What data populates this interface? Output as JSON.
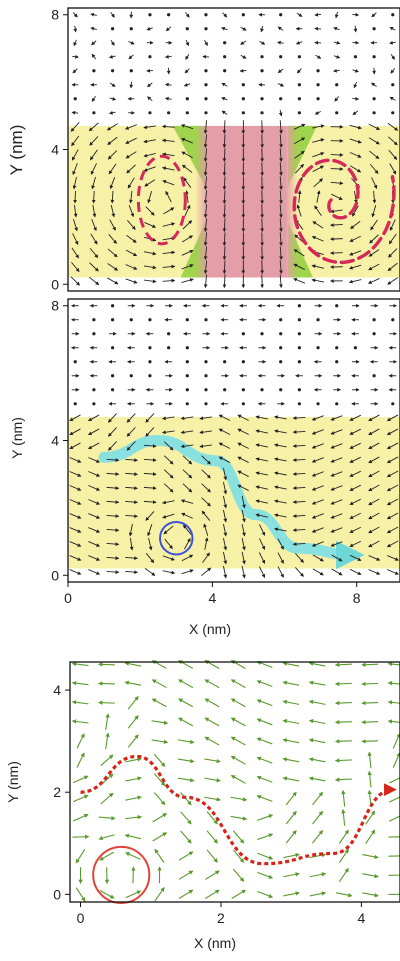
{
  "chart_data": [
    {
      "type": "quiver",
      "panel": "top",
      "xlabel": "",
      "ylabel": "Y (nm)",
      "xlim": [
        0,
        9.2
      ],
      "ylim": [
        -0.2,
        8.2
      ],
      "x_ticks": [],
      "y_ticks": [
        0,
        4,
        8
      ],
      "grid": false,
      "legend": "none",
      "regions": [
        {
          "name": "yellow-layer",
          "x": [
            0,
            9.2
          ],
          "y": [
            0.2,
            4.7
          ],
          "color": "#f7f1a8"
        },
        {
          "name": "pink-column",
          "x": [
            3.8,
            6.1
          ],
          "y": [
            0.2,
            4.7
          ],
          "color": "#e39aa8"
        },
        {
          "name": "green-flare",
          "x": [
            2.9,
            6.9
          ],
          "y": [
            0.2,
            4.7
          ],
          "color": "#8fcf3c"
        }
      ],
      "field": {
        "nx": 18,
        "ny": 20,
        "x_range": [
          0.2,
          9.0
        ],
        "y_range": [
          0.1,
          8.0
        ],
        "pattern": "opposing vortices"
      },
      "curves": [
        {
          "name": "left-ellipse",
          "shape": "ellipse",
          "cx": 2.6,
          "cy": 2.5,
          "rx": 0.65,
          "ry": 1.3,
          "color": "#d4295a",
          "style": "dashed"
        },
        {
          "name": "right-spiral",
          "shape": "spiral",
          "cx": 7.4,
          "cy": 2.5,
          "color": "#d4295a",
          "style": "dashed"
        }
      ],
      "colors": {
        "arrow": "#222222",
        "frame": "#111111"
      }
    },
    {
      "type": "quiver",
      "panel": "middle",
      "xlabel": "X (nm)",
      "ylabel": "Y (nm)",
      "xlim": [
        0,
        9.2
      ],
      "ylim": [
        -0.2,
        8.2
      ],
      "x_ticks": [
        0,
        4,
        8
      ],
      "y_ticks": [
        0,
        4,
        8
      ],
      "grid": false,
      "legend": "none",
      "regions": [
        {
          "name": "yellow-layer",
          "x": [
            0,
            9.2
          ],
          "y": [
            0.2,
            4.7
          ],
          "color": "#f7f1a8"
        }
      ],
      "field": {
        "nx": 18,
        "ny": 20,
        "x_range": [
          0.2,
          9.0
        ],
        "y_range": [
          0.1,
          8.0
        ],
        "pattern": "skyrmion string"
      },
      "path": [
        [
          1.0,
          3.5
        ],
        [
          2.5,
          4.0
        ],
        [
          4.1,
          3.4
        ],
        [
          5.2,
          1.8
        ],
        [
          6.4,
          0.8
        ],
        [
          7.9,
          0.6
        ]
      ],
      "path_color": "#7ee0e6",
      "circle": {
        "cx": 3.0,
        "cy": 1.1,
        "r": 0.45,
        "color": "#3b52d6"
      },
      "colors": {
        "arrow": "#222222",
        "frame": "#111111"
      }
    },
    {
      "type": "quiver",
      "panel": "bottom",
      "xlabel": "X (nm)",
      "ylabel": "Y (nm)",
      "xlim": [
        -0.15,
        4.55
      ],
      "ylim": [
        -0.15,
        4.55
      ],
      "x_ticks": [
        0,
        2,
        4
      ],
      "y_ticks": [
        0,
        2,
        4
      ],
      "grid": false,
      "legend": "none",
      "field": {
        "nx": 13,
        "ny": 13,
        "x_range": [
          0.0,
          4.5
        ],
        "y_range": [
          0.0,
          4.5
        ],
        "pattern": "meandering flow"
      },
      "path": [
        [
          0.0,
          2.0
        ],
        [
          0.8,
          2.7
        ],
        [
          1.5,
          1.9
        ],
        [
          2.6,
          0.6
        ],
        [
          3.6,
          0.8
        ],
        [
          4.45,
          2.05
        ]
      ],
      "path_color": "#d62418",
      "circle": {
        "cx": 0.58,
        "cy": 0.38,
        "r": 0.4,
        "color": "#e0443a"
      },
      "colors": {
        "arrow": "#5a9a2c",
        "frame": "#111111"
      }
    }
  ]
}
